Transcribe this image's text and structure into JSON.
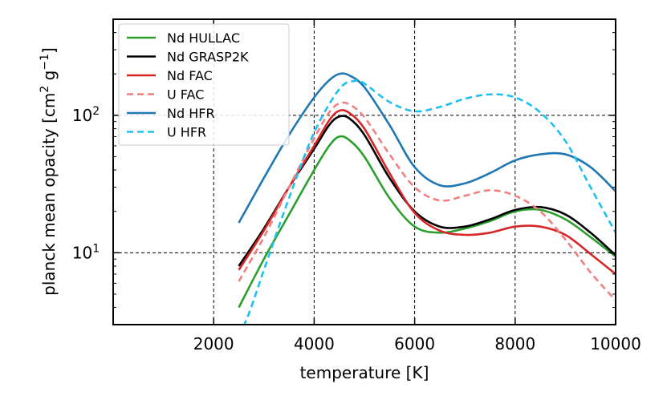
{
  "chart_data": {
    "type": "line",
    "title": "",
    "xlabel": "temperature [K]",
    "ylabel_parts": {
      "base": "planck mean opacity [cm",
      "sup1": "2",
      "mid": " g",
      "sup2": "−1",
      "end": "]"
    },
    "xlim": [
      0,
      10000
    ],
    "ylim": [
      3,
      500
    ],
    "yscale": "log",
    "grid": true,
    "grid_style": "dashed",
    "legend_position": "top-left",
    "x_ticks": [
      2000,
      4000,
      6000,
      8000,
      10000
    ],
    "x_tick_labels": [
      "2000",
      "4000",
      "6000",
      "8000",
      "10000"
    ],
    "y_ticks_major": [
      10,
      100
    ],
    "y_tick_labels": [
      {
        "base": "10",
        "exp": "1"
      },
      {
        "base": "10",
        "exp": "2"
      }
    ],
    "y_ticks_minor": [
      3,
      4,
      5,
      6,
      7,
      8,
      9,
      20,
      30,
      40,
      50,
      60,
      70,
      80,
      90,
      200,
      300,
      400
    ],
    "series": [
      {
        "name": "Nd HULLAC",
        "color": "#2ca02c",
        "dash": "solid",
        "x": [
          2500,
          3000,
          3500,
          4000,
          4300,
          4500,
          4700,
          5000,
          5500,
          6000,
          6500,
          7000,
          7500,
          8000,
          8500,
          9000,
          9500,
          10000
        ],
        "y": [
          4.0,
          9.0,
          19,
          40,
          60,
          70,
          66,
          50,
          25,
          15.5,
          14,
          15,
          17,
          20,
          20.5,
          17.5,
          13,
          9.4
        ]
      },
      {
        "name": "Nd GRASP2K",
        "color": "#000000",
        "dash": "solid",
        "x": [
          2500,
          3000,
          3500,
          4000,
          4300,
          4500,
          4700,
          5000,
          5500,
          6000,
          6500,
          7000,
          7500,
          8000,
          8500,
          9000,
          9500,
          10000
        ],
        "y": [
          8.0,
          15,
          30,
          57,
          85,
          98,
          95,
          72,
          35,
          20,
          15.5,
          15.5,
          17.5,
          20.5,
          21.5,
          19,
          14,
          9.6
        ]
      },
      {
        "name": "Nd FAC",
        "color": "#d62728",
        "dash": "solid",
        "x": [
          2500,
          3000,
          3500,
          4000,
          4300,
          4500,
          4700,
          5000,
          5500,
          6000,
          6500,
          7000,
          7500,
          8000,
          8500,
          9000,
          9500,
          10000
        ],
        "y": [
          7.5,
          14.5,
          30,
          60,
          92,
          108,
          104,
          80,
          38,
          19.5,
          14.5,
          13.5,
          14,
          15.5,
          15.5,
          13.5,
          9.8,
          7.0
        ]
      },
      {
        "name": "U FAC",
        "color": "#f08080",
        "dash": "dashed",
        "x": [
          2500,
          3000,
          3500,
          4000,
          4300,
          4500,
          4700,
          5000,
          5500,
          6000,
          6500,
          7000,
          7500,
          8000,
          8500,
          9000,
          9500,
          10000
        ],
        "y": [
          6.2,
          13,
          30,
          68,
          105,
          122,
          120,
          97,
          52,
          30,
          24,
          26,
          28.5,
          26,
          20,
          12.5,
          7.2,
          4.5
        ]
      },
      {
        "name": "Nd HFR",
        "color": "#1f77b4",
        "dash": "solid",
        "x": [
          2500,
          3000,
          3500,
          4000,
          4300,
          4500,
          4700,
          5000,
          5500,
          6000,
          6500,
          7000,
          7500,
          8000,
          8500,
          9000,
          9500,
          10000
        ],
        "y": [
          16.5,
          35,
          72,
          135,
          180,
          200,
          195,
          160,
          85,
          42,
          31,
          32,
          38,
          47,
          52,
          52,
          42,
          28
        ]
      },
      {
        "name": "U HFR",
        "color": "#1ec0f0",
        "dash": "dashed",
        "x": [
          2500,
          2700,
          3000,
          3500,
          4000,
          4500,
          4800,
          5000,
          5500,
          6000,
          6500,
          7000,
          7500,
          8000,
          8500,
          9000,
          9500,
          10000
        ],
        "y": [
          2.5,
          3.6,
          7.5,
          25,
          75,
          155,
          178,
          170,
          125,
          107,
          115,
          132,
          142,
          135,
          105,
          65,
          30,
          14
        ]
      }
    ]
  }
}
